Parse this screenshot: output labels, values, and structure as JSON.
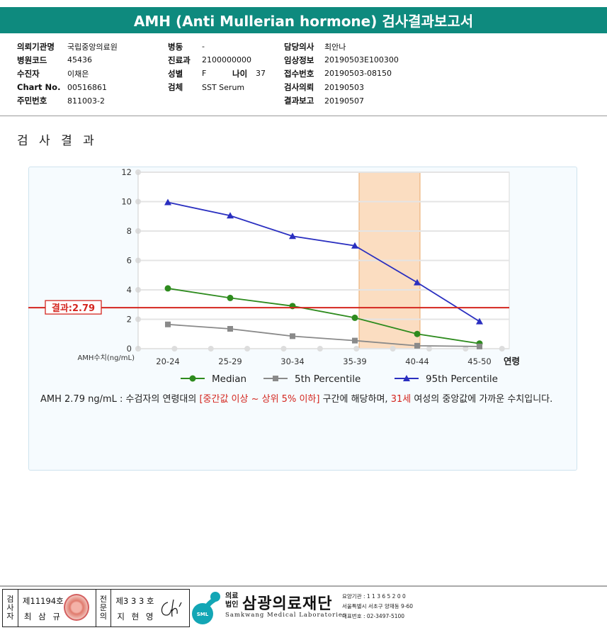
{
  "title": "AMH (Anti Mullerian hormone) 검사결과보고서",
  "info": {
    "col1": [
      {
        "label": "의뢰기관명",
        "value": "국립중앙의료원"
      },
      {
        "label": "병원코드",
        "value": "45436"
      },
      {
        "label": "수진자",
        "value": "이채은"
      },
      {
        "label": "Chart No.",
        "value": "00516861"
      },
      {
        "label": "주민번호",
        "value": "811003-2"
      }
    ],
    "col2": [
      {
        "label": "병동",
        "value": "-"
      },
      {
        "label": "진료과",
        "value": "2100000000"
      },
      {
        "label": "성별",
        "value": "F"
      },
      {
        "label": "검체",
        "value": "SST Serum"
      }
    ],
    "age": {
      "label": "나이",
      "value": "37"
    },
    "col3": [
      {
        "label": "담당의사",
        "value": "최안나"
      },
      {
        "label": "임상정보",
        "value": "20190503E100300"
      },
      {
        "label": "접수번호",
        "value": "20190503-08150"
      },
      {
        "label": "검사의뢰",
        "value": "20190503"
      },
      {
        "label": "결과보고",
        "value": "20190507"
      }
    ]
  },
  "section_title": "검 사 결 과",
  "chart_data": {
    "type": "line",
    "categories": [
      "20-24",
      "25-29",
      "30-34",
      "35-39",
      "40-44",
      "45-50"
    ],
    "xlabel": "연령",
    "ylabel": "AMH수치(ng/mL)",
    "ylim": [
      0,
      12
    ],
    "yticks": [
      0,
      2,
      4,
      6,
      8,
      10,
      12
    ],
    "grid": true,
    "legend_position": "bottom",
    "series": [
      {
        "name": "Median",
        "color": "#2e8b1e",
        "marker": "circle",
        "values": [
          4.1,
          3.45,
          2.9,
          2.1,
          1.0,
          0.35
        ]
      },
      {
        "name": "5th Percentile",
        "color": "#8a8a8a",
        "marker": "square",
        "values": [
          1.65,
          1.35,
          0.85,
          0.55,
          0.2,
          0.15
        ]
      },
      {
        "name": "95th Percentile",
        "color": "#2a2fc0",
        "marker": "triangle",
        "values": [
          9.95,
          9.05,
          7.65,
          7.0,
          4.5,
          1.85
        ]
      }
    ],
    "result_line": {
      "label": "결과:2.79",
      "value": 2.79,
      "color": "#d4261f"
    },
    "highlight_category": "35-39"
  },
  "result_text": {
    "part1": "AMH  2.79 ng/mL : 수검자의 연령대의 ",
    "part2": "[중간값 이상 ~ 상위 5% 이하]",
    "part3": " 구간에 해당하며, ",
    "part4": "31세",
    "part5": " 여성의 중앙값에 가까운 수치입니다."
  },
  "footer": {
    "tester_label": "검사자",
    "tester_license": "제11194호",
    "tester_name": "최 삼 규",
    "doctor_label": "전문의",
    "doctor_license": "제3 3 3 호",
    "doctor_name": "지 현 영",
    "org_prefix": "의료\n법인",
    "org_name": "삼광의료재단",
    "org_en": "Samkwang Medical Laboratories",
    "logo_text": "SML",
    "code": "요양기관 : 1 1 3 6 5 2 0 0",
    "address": "서울특별시 서초구 양재동 9-60",
    "phone": "대표번호 : 02-3497-5100"
  }
}
